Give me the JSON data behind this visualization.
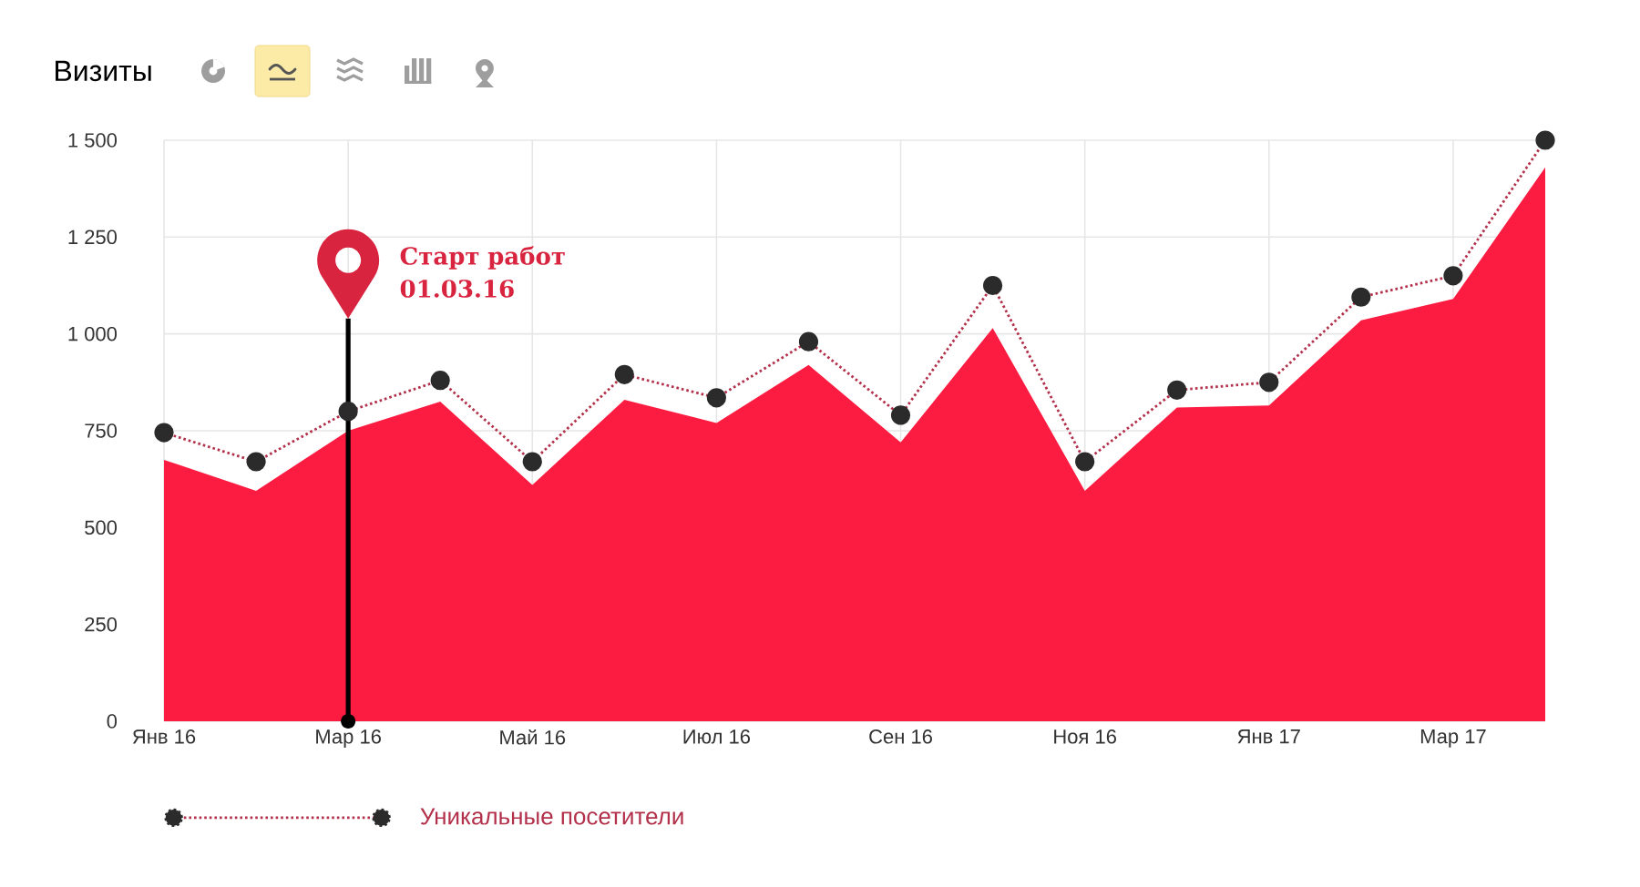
{
  "chart_data": {
    "type": "area",
    "title": "Визиты",
    "categories": [
      "Янв 16",
      null,
      "Мар 16",
      null,
      "Май 16",
      null,
      "Июл 16",
      null,
      "Сен 16",
      null,
      "Ноя 16",
      null,
      "Янв 17",
      null,
      "Мар 17",
      null
    ],
    "series": [
      {
        "color": "#fd1c41",
        "values": [
          675,
          595,
          750,
          825,
          610,
          830,
          770,
          920,
          720,
          1015,
          595,
          810,
          815,
          1035,
          1090,
          1430
        ]
      },
      {
        "type": "line",
        "name": "Уникальные посетители",
        "color": "#b3304a",
        "marker": "circle",
        "line_style": "dotted",
        "values": [
          745,
          670,
          800,
          880,
          670,
          895,
          835,
          980,
          790,
          1125,
          670,
          855,
          875,
          1095,
          1150,
          1500
        ]
      }
    ],
    "ylim": [
      0,
      1500
    ],
    "yticks": [
      0,
      250,
      500,
      750,
      {
        "value": 1000,
        "label": "1 000"
      },
      {
        "value": 1250,
        "label": "1 250"
      },
      {
        "value": 1500,
        "label": "1 500"
      }
    ],
    "grid": true,
    "legend": "bottom left",
    "ref_lines": [
      {
        "axis": "x",
        "value": "Мар 16",
        "label": "Старт работ 01.03.16",
        "color": "#000000"
      }
    ]
  }
}
